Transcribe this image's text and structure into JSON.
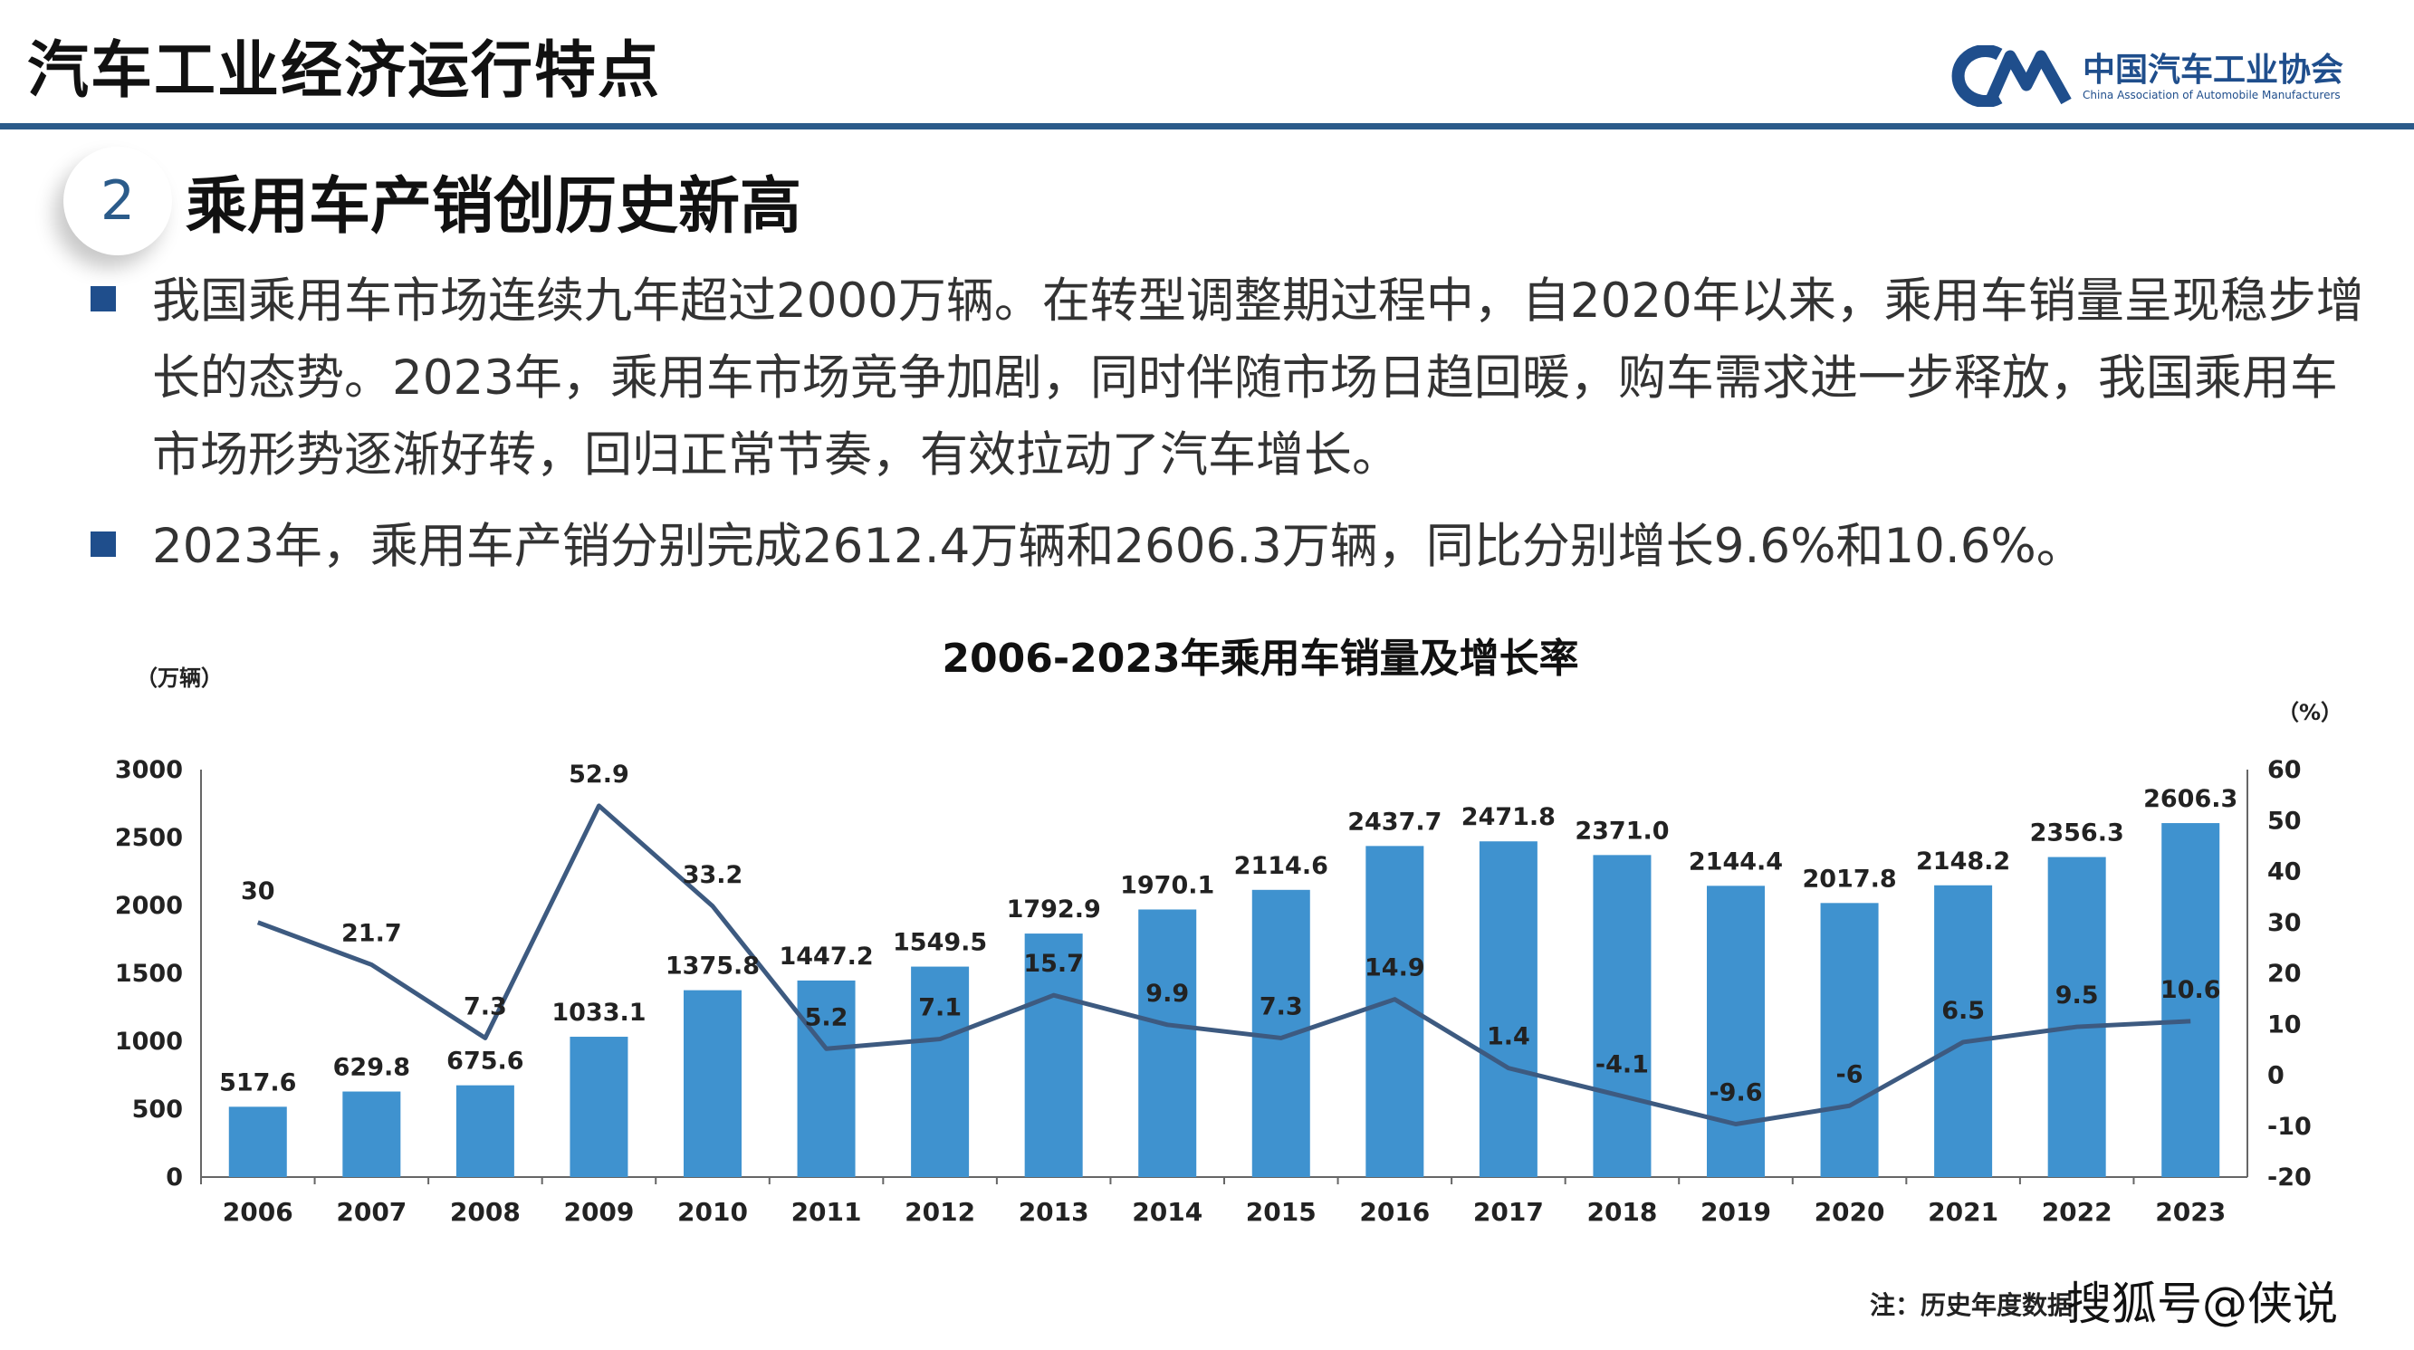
{
  "header": {
    "title": "汽车工业经济运行特点",
    "logo_cn": "中国汽车工业协会",
    "logo_en": "China Association of Automobile Manufacturers"
  },
  "section": {
    "number": "2",
    "heading": "乘用车产销创历史新高"
  },
  "bullets": [
    "我国乘用车市场连续九年超过2000万辆。在转型调整期过程中，自2020年以来，乘用车销量呈现稳步增长的态势。2023年，乘用车市场竞争加剧，同时伴随市场日趋回暖，购车需求进一步释放，我国乘用车市场形势逐渐好转，回归正常节奏，有效拉动了汽车增长。",
    "2023年，乘用车产销分别完成2612.4万辆和2606.3万辆，同比分别增长9.6%和10.6%。"
  ],
  "chart_data": {
    "type": "bar",
    "title": "2006-2023年乘用车销量及增长率",
    "left_unit": "（万辆）",
    "right_unit": "（%）",
    "categories": [
      "2006",
      "2007",
      "2008",
      "2009",
      "2010",
      "2011",
      "2012",
      "2013",
      "2014",
      "2015",
      "2016",
      "2017",
      "2018",
      "2019",
      "2020",
      "2021",
      "2022",
      "2023"
    ],
    "series": [
      {
        "kind": "bar",
        "axis": "left",
        "values": [
          517.6,
          629.8,
          675.6,
          1033.1,
          1375.8,
          1447.2,
          1549.5,
          1792.9,
          1970.1,
          2114.6,
          2437.7,
          2471.8,
          2371.0,
          2144.4,
          2017.8,
          2148.2,
          2356.3,
          2606.3
        ],
        "labels": [
          "517.6",
          "629.8",
          "675.6",
          "1033.1",
          "1375.8",
          "1447.2",
          "1549.5",
          "1792.9",
          "1970.1",
          "2114.6",
          "2437.7",
          "2471.8",
          "2371.0",
          "2144.4",
          "2017.8",
          "2148.2",
          "2356.3",
          "2606.3"
        ],
        "color": "#3f92cf"
      },
      {
        "kind": "line",
        "axis": "right",
        "values": [
          30,
          21.7,
          7.3,
          52.9,
          33.2,
          5.2,
          7.1,
          15.7,
          9.9,
          7.3,
          14.9,
          1.4,
          -4.1,
          -9.6,
          -6,
          6.5,
          9.5,
          10.6
        ],
        "labels": [
          "30",
          "21.7",
          "7.3",
          "52.9",
          "33.2",
          "5.2",
          "7.1",
          "15.7",
          "9.9",
          "7.3",
          "14.9",
          "1.4",
          "-4.1",
          "-9.6",
          "-6",
          "6.5",
          "9.5",
          "10.6"
        ],
        "color": "#3d5a80"
      }
    ],
    "left_axis": {
      "min": 0,
      "max": 3000,
      "ticks": [
        0,
        500,
        1000,
        1500,
        2000,
        2500,
        3000
      ]
    },
    "right_axis": {
      "min": -20,
      "max": 60,
      "ticks": [
        -20,
        -10,
        0,
        10,
        20,
        30,
        40,
        50,
        60
      ]
    },
    "grid": false,
    "legend": "none"
  },
  "footnote": "注：历史年度数据",
  "source_mark": "搜狐号@侠说"
}
